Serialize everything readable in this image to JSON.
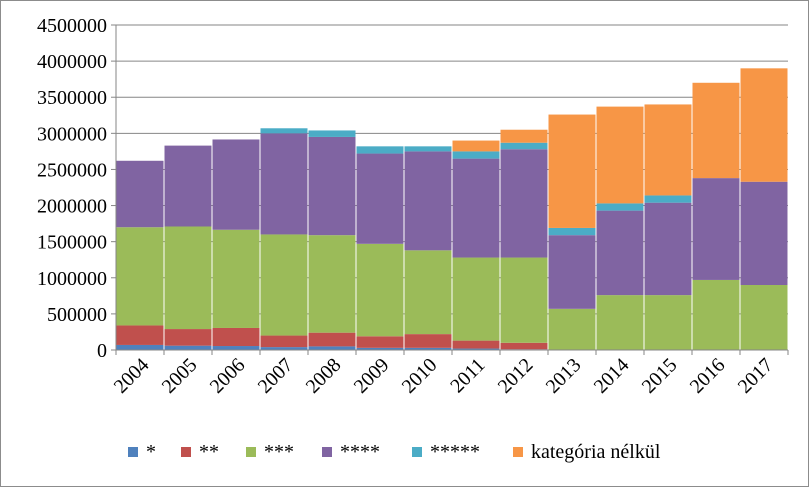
{
  "chart_data": {
    "type": "bar",
    "stacked": true,
    "title": "",
    "xlabel": "",
    "ylabel": "",
    "categories": [
      "2004",
      "2005",
      "2006",
      "2007",
      "2008",
      "2009",
      "2010",
      "2011",
      "2012",
      "2013",
      "2014",
      "2015",
      "2016",
      "2017"
    ],
    "ylim": [
      0,
      4500000
    ],
    "yticks": [
      0,
      500000,
      1000000,
      1500000,
      2000000,
      2500000,
      3000000,
      3500000,
      4000000,
      4500000
    ],
    "ytick_labels": [
      "0",
      "500000",
      "1000000",
      "1500000",
      "2000000",
      "2500000",
      "3000000",
      "3500000",
      "4000000",
      "4500000"
    ],
    "grid": "horizontal",
    "legend_position": "bottom",
    "series": [
      {
        "name": "*",
        "color": "#4F81BD",
        "values": [
          70000,
          60000,
          55000,
          40000,
          50000,
          30000,
          30000,
          20000,
          10000,
          0,
          0,
          0,
          0,
          0
        ]
      },
      {
        "name": "**",
        "color": "#C0504D",
        "values": [
          270000,
          230000,
          250000,
          160000,
          190000,
          160000,
          190000,
          110000,
          90000,
          0,
          0,
          0,
          0,
          0
        ]
      },
      {
        "name": "***",
        "color": "#9BBB59",
        "values": [
          1360000,
          1420000,
          1360000,
          1400000,
          1350000,
          1280000,
          1160000,
          1150000,
          1180000,
          570000,
          760000,
          760000,
          970000,
          900000
        ]
      },
      {
        "name": "****",
        "color": "#8064A2",
        "values": [
          920000,
          1120000,
          1250000,
          1400000,
          1360000,
          1250000,
          1370000,
          1370000,
          1500000,
          1020000,
          1170000,
          1280000,
          1410000,
          1430000
        ]
      },
      {
        "name": "*****",
        "color": "#4BACC6",
        "values": [
          0,
          0,
          0,
          70000,
          90000,
          100000,
          70000,
          100000,
          90000,
          100000,
          100000,
          100000,
          0,
          0
        ]
      },
      {
        "name": "kategória nélkül",
        "color": "#F79646",
        "values": [
          0,
          0,
          0,
          0,
          0,
          0,
          0,
          150000,
          180000,
          1570000,
          1340000,
          1260000,
          1320000,
          1570000
        ]
      }
    ]
  }
}
